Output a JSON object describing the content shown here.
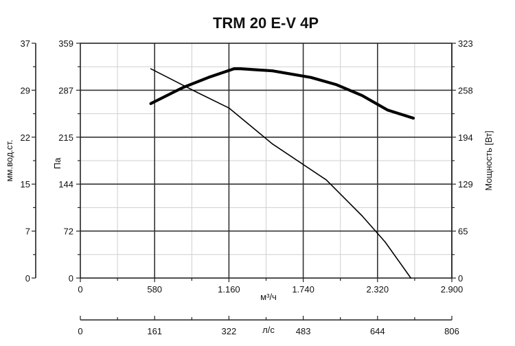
{
  "chart_data": {
    "type": "line",
    "title": "TRM 20 E-V 4P",
    "x_axis": {
      "label": "м³/ч",
      "range": [
        0,
        2900
      ],
      "major_ticks": [
        0,
        580,
        1160,
        1740,
        2320,
        2900
      ],
      "tick_labels": [
        "0",
        "580",
        "1.160",
        "1.740",
        "2.320",
        "2.900"
      ]
    },
    "x2_axis": {
      "label": "л/с",
      "range": [
        0,
        806
      ],
      "tick_labels": [
        "0",
        "161",
        "322",
        "483",
        "644",
        "806"
      ]
    },
    "y_left_outer": {
      "label": "мм.вод.ст.",
      "tick_labels": [
        "0",
        "7",
        "15",
        "22",
        "29",
        "37"
      ]
    },
    "y_left": {
      "label": "Па",
      "range": [
        0,
        359
      ],
      "tick_labels": [
        "0",
        "72",
        "144",
        "215",
        "287",
        "359"
      ]
    },
    "y_right": {
      "label": "Мощность [Вт]",
      "range": [
        0,
        323
      ],
      "tick_labels": [
        "0",
        "65",
        "129",
        "194",
        "258",
        "323"
      ]
    },
    "grid": true,
    "series": [
      {
        "axis": "y_left",
        "color": "#000000",
        "x": [
          550,
          900,
          1160,
          1500,
          1920,
          2200,
          2380,
          2580
        ],
        "y": [
          320,
          285,
          260,
          205,
          150,
          95,
          55,
          0
        ]
      },
      {
        "axis": "y_right",
        "color": "#000000",
        "x": [
          550,
          800,
          1000,
          1200,
          1250,
          1500,
          1800,
          2000,
          2200,
          2400,
          2600
        ],
        "y": [
          240,
          262,
          276,
          288,
          288,
          285,
          276,
          266,
          251,
          231,
          220
        ]
      }
    ]
  }
}
